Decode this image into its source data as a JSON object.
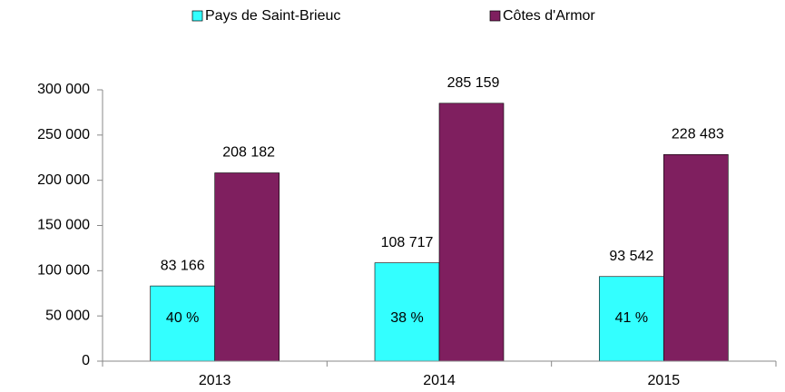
{
  "chart_data": {
    "type": "bar",
    "categories": [
      "2013",
      "2014",
      "2015"
    ],
    "series": [
      {
        "name": "Pays de Saint-Brieuc",
        "color": "#33ffff",
        "values": [
          83166,
          108717,
          93542
        ],
        "value_labels": [
          "83 166",
          "108 717",
          "93 542"
        ],
        "share_labels": [
          "40 %",
          "38 %",
          "41 %"
        ]
      },
      {
        "name": "Côtes d'Armor",
        "color": "#7f1f5f",
        "values": [
          208182,
          285159,
          228483
        ],
        "value_labels": [
          "208 182",
          "285 159",
          "228 483"
        ]
      }
    ],
    "ylim": [
      0,
      300000
    ],
    "yticks": [
      {
        "value": 0,
        "label": "0"
      },
      {
        "value": 50000,
        "label": "50 000"
      },
      {
        "value": 100000,
        "label": "100 000"
      },
      {
        "value": 150000,
        "label": "150 000"
      },
      {
        "value": 200000,
        "label": "200 000"
      },
      {
        "value": 250000,
        "label": "250 000"
      },
      {
        "value": 300000,
        "label": "300 000"
      }
    ],
    "grid": false,
    "legend": "top"
  }
}
